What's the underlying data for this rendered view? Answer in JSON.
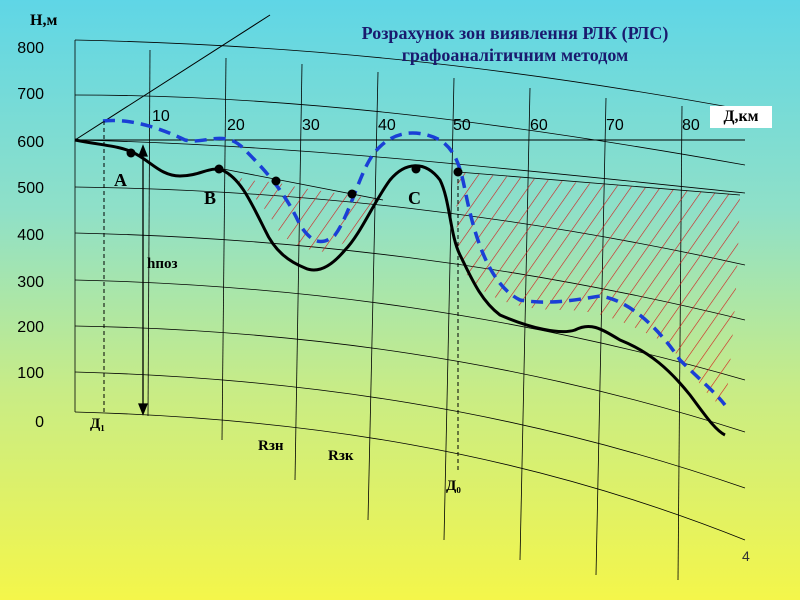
{
  "title": {
    "line1": "Розрахунок зон виявлення РЛК (РЛС)",
    "line2": "графоаналітичним методом"
  },
  "axes": {
    "y_label": "Н,м",
    "x_label": "Д,км",
    "y_ticks": [
      "800",
      "700",
      "600",
      "500",
      "400",
      "300",
      "200",
      "100",
      "0"
    ],
    "x_ticks": [
      "10",
      "20",
      "30",
      "40",
      "50",
      "60",
      "70",
      "80"
    ]
  },
  "labels": {
    "point_a": "A",
    "point_b": "B",
    "point_c": "C",
    "h_poz": "hпоз",
    "d1": "Д₁",
    "d0": "Д₀",
    "r_zn": "Rзн",
    "r_zk": "Rзк"
  },
  "colors": {
    "terrain": "#000000",
    "beam": "#1a3fd6",
    "hatch": "#d21a1a",
    "title": "#1a1a6e"
  },
  "page_number": "4"
}
